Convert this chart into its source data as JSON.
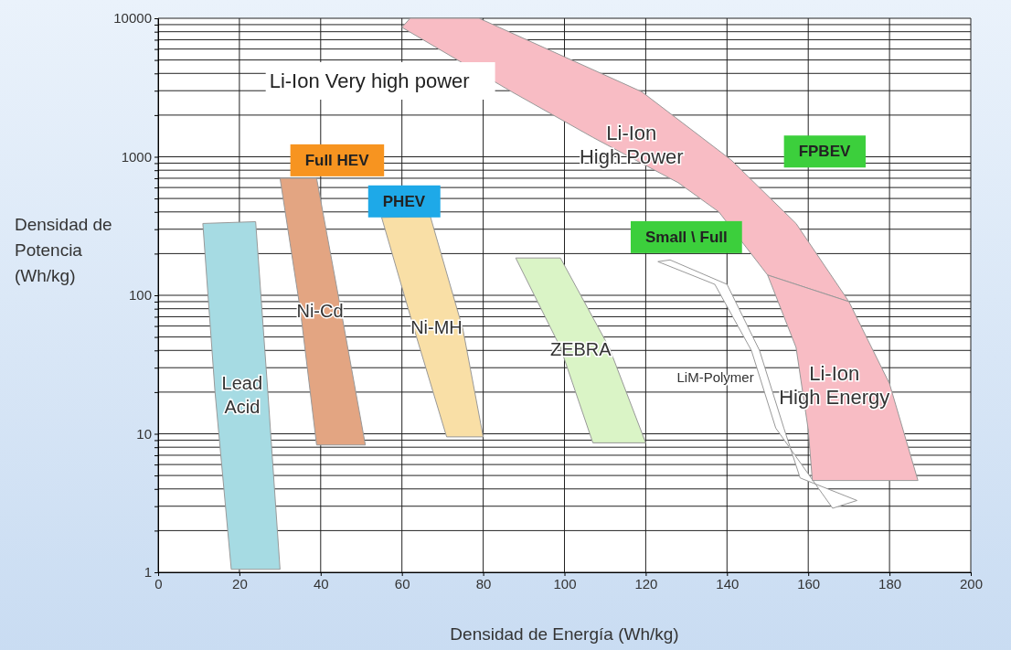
{
  "chart_data": {
    "type": "area",
    "xlabel": "Densidad de Energía (Wh/kg)",
    "ylabel": "Densidad de Potencia (Wh/kg)",
    "log": "y",
    "grid": true,
    "xlim": [
      0,
      200
    ],
    "xticks": [
      0,
      20,
      40,
      60,
      80,
      100,
      120,
      140,
      160,
      180,
      200
    ],
    "ylim": [
      1,
      10000
    ],
    "yticks": [
      1,
      {
        "value": 2,
        "label": null
      },
      {
        "value": 3,
        "label": null
      },
      {
        "value": 4,
        "label": null
      },
      {
        "value": 5,
        "label": null
      },
      {
        "value": 6,
        "label": null
      },
      {
        "value": 7,
        "label": null
      },
      {
        "value": 8,
        "label": null
      },
      {
        "value": 9,
        "label": null
      },
      10,
      {
        "value": 20,
        "label": null
      },
      {
        "value": 30,
        "label": null
      },
      {
        "value": 40,
        "label": null
      },
      {
        "value": 50,
        "label": null
      },
      {
        "value": 60,
        "label": null
      },
      {
        "value": 70,
        "label": null
      },
      {
        "value": 80,
        "label": null
      },
      {
        "value": 90,
        "label": null
      },
      100,
      {
        "value": 200,
        "label": null
      },
      {
        "value": 300,
        "label": null
      },
      {
        "value": 400,
        "label": null
      },
      {
        "value": 500,
        "label": null
      },
      {
        "value": 600,
        "label": null
      },
      {
        "value": 700,
        "label": null
      },
      {
        "value": 800,
        "label": null
      },
      {
        "value": 900,
        "label": null
      },
      1000,
      {
        "value": 2000,
        "label": null
      },
      {
        "value": 3000,
        "label": null
      },
      {
        "value": 4000,
        "label": null
      },
      {
        "value": 5000,
        "label": null
      },
      {
        "value": 6000,
        "label": null
      },
      {
        "value": 7000,
        "label": null
      },
      {
        "value": 8000,
        "label": null
      },
      {
        "value": 9000,
        "label": null
      },
      10000
    ],
    "series": [
      {
        "name": "LiM-Polymer",
        "color": "#ffffff",
        "x": [
          126,
          140,
          148,
          154,
          158,
          172,
          166,
          152,
          146,
          137,
          123
        ],
        "values": [
          180,
          120,
          40,
          11,
          4.8,
          3.3,
          2.9,
          11,
          40,
          120,
          175
        ]
      },
      {
        "name": "Lead Acid",
        "color": "#a6dbe3",
        "x": [
          11,
          24,
          27,
          30,
          18,
          14
        ],
        "values": [
          330,
          340,
          20,
          1.05,
          1.05,
          20
        ]
      },
      {
        "name": "Ni-Cd",
        "color": "#e3a582",
        "x": [
          30,
          39,
          45,
          51,
          39,
          35
        ],
        "values": [
          700,
          700,
          78,
          8.3,
          8.3,
          78
        ]
      },
      {
        "name": "Ni-MH",
        "color": "#f9dfa6",
        "x": [
          55,
          67,
          75,
          80,
          71,
          63
        ],
        "values": [
          365,
          370,
          57,
          9.5,
          9.5,
          57
        ]
      },
      {
        "name": "ZEBRA",
        "color": "#daf4c6",
        "x": [
          88,
          99,
          111,
          120,
          107,
          99
        ],
        "values": [
          186,
          186,
          42,
          8.6,
          8.6,
          42
        ]
      },
      {
        "name": "Li-Ion High Power",
        "color": "#f8bcc4",
        "x": [
          62,
          79,
          119,
          141,
          157,
          170,
          150,
          138,
          128,
          107,
          87,
          60
        ],
        "values": [
          10000,
          10000,
          2950,
          950,
          330,
          90,
          140,
          400,
          650,
          1380,
          2950,
          8600
        ]
      },
      {
        "name": "Li-Ion High Energy",
        "color": "#f8bcc4",
        "x": [
          150,
          170,
          180,
          187,
          161,
          160,
          157
        ],
        "values": [
          140,
          90,
          23,
          4.6,
          4.6,
          10.7,
          42
        ]
      }
    ],
    "annotations": [
      "Li-Ion Very high power",
      "Full HEV",
      "PHEV",
      "Small \\ Full",
      "FPBEV"
    ]
  }
}
